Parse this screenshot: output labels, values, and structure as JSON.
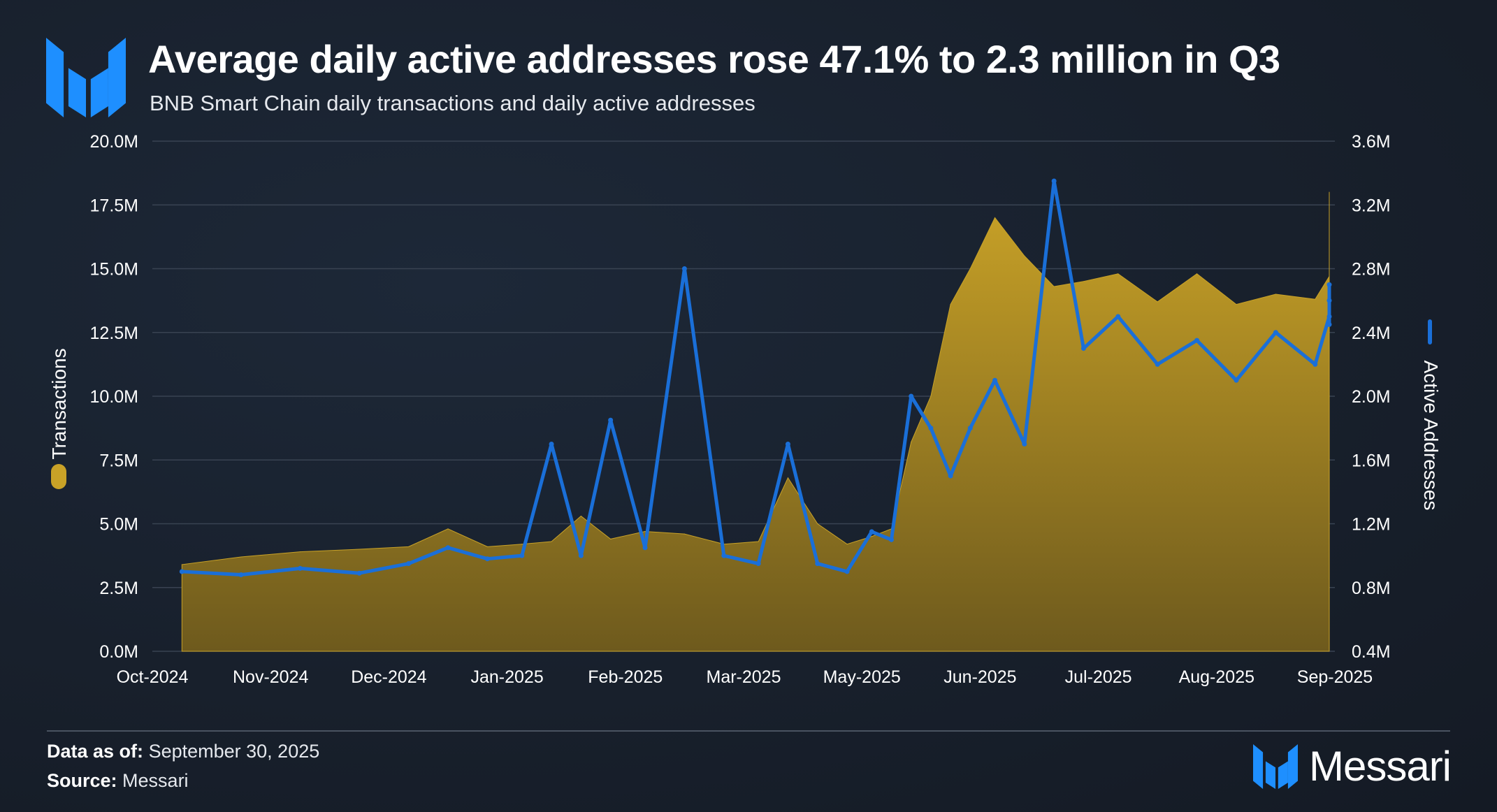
{
  "title": "Average daily active addresses rose 47.1% to 2.3 million in Q3",
  "subtitle": "BNB Smart Chain daily transactions and daily active addresses",
  "footer": {
    "data_as_of_label": "Data as of:",
    "data_as_of_value": "September 30, 2025",
    "source_label": "Source:",
    "source_value": "Messari"
  },
  "brand": {
    "name": "Messari"
  },
  "colors": {
    "background": "#18202c",
    "transactions": "#c9a227",
    "active_addresses": "#1a6fd8",
    "brand_blue": "#1e8fff",
    "gridline": "#394352"
  },
  "icons": {
    "logo": "messari-logo-icon"
  },
  "chart_data": {
    "type": "area",
    "xlabel": "",
    "x_ticks": [
      "Oct-2024",
      "Nov-2024",
      "Dec-2024",
      "Jan-2025",
      "Feb-2025",
      "Mar-2025",
      "May-2025",
      "Jun-2025",
      "Jul-2025",
      "Aug-2025",
      "Sep-2025"
    ],
    "y_left": {
      "label": "Transactions",
      "ticks": [
        "0.0M",
        "2.5M",
        "5.0M",
        "7.5M",
        "10.0M",
        "12.5M",
        "15.0M",
        "17.5M",
        "20.0M"
      ],
      "range": [
        0,
        20000000
      ]
    },
    "y_right": {
      "label": "Active Addresses",
      "ticks": [
        "0.4M",
        "0.8M",
        "1.2M",
        "1.6M",
        "2.0M",
        "2.4M",
        "2.8M",
        "3.2M",
        "3.6M"
      ],
      "range": [
        400000,
        3600000
      ]
    },
    "grid": true,
    "series": [
      {
        "name": "Transactions",
        "type": "area",
        "axis": "left",
        "x": [
          "Oct-2024",
          "Oct-2024",
          "Nov-2024",
          "Nov-2024",
          "Dec-2024",
          "Dec-2024",
          "Dec-2024",
          "Jan-2025",
          "Jan-2025",
          "Jan-2025",
          "Jan-2025",
          "Feb-2025",
          "Feb-2025",
          "Feb-2025",
          "Mar-2025",
          "Mar-2025",
          "Mar-2025",
          "Mar-2025",
          "May-2025",
          "May-2025",
          "May-2025",
          "May-2025",
          "May-2025",
          "May-2025",
          "Jun-2025",
          "Jun-2025",
          "Jun-2025",
          "Jun-2025",
          "Jul-2025",
          "Jul-2025",
          "Jul-2025",
          "Aug-2025",
          "Aug-2025",
          "Aug-2025",
          "Sep-2025",
          "Sep-2025",
          "Sep-2025",
          "Sep-2025"
        ],
        "values": [
          3400000,
          3700000,
          3900000,
          4000000,
          4100000,
          4800000,
          4100000,
          4200000,
          4300000,
          5300000,
          4400000,
          4700000,
          4600000,
          4200000,
          4300000,
          6800000,
          5000000,
          4200000,
          4500000,
          4800000,
          8200000,
          10000000,
          13600000,
          15000000,
          17000000,
          15500000,
          14300000,
          14500000,
          14800000,
          13700000,
          14800000,
          13600000,
          14000000,
          13800000,
          14700000,
          16000000,
          18000000,
          16000000
        ]
      },
      {
        "name": "Active Addresses",
        "type": "line",
        "axis": "right",
        "x": [
          "Oct-2024",
          "Oct-2024",
          "Nov-2024",
          "Nov-2024",
          "Dec-2024",
          "Dec-2024",
          "Dec-2024",
          "Jan-2025",
          "Jan-2025",
          "Jan-2025",
          "Jan-2025",
          "Feb-2025",
          "Feb-2025",
          "Feb-2025",
          "Mar-2025",
          "Mar-2025",
          "Mar-2025",
          "Mar-2025",
          "May-2025",
          "May-2025",
          "May-2025",
          "May-2025",
          "May-2025",
          "May-2025",
          "Jun-2025",
          "Jun-2025",
          "Jun-2025",
          "Jun-2025",
          "Jul-2025",
          "Jul-2025",
          "Jul-2025",
          "Aug-2025",
          "Aug-2025",
          "Aug-2025",
          "Sep-2025",
          "Sep-2025",
          "Sep-2025",
          "Sep-2025"
        ],
        "values": [
          900000,
          880000,
          920000,
          890000,
          950000,
          1050000,
          980000,
          1000000,
          1700000,
          1000000,
          1850000,
          1050000,
          2800000,
          1000000,
          950000,
          1700000,
          950000,
          900000,
          1150000,
          1100000,
          2000000,
          1800000,
          1500000,
          1800000,
          2100000,
          1700000,
          3350000,
          2300000,
          2500000,
          2200000,
          2350000,
          2100000,
          2400000,
          2200000,
          2500000,
          2600000,
          2700000,
          2450000
        ]
      }
    ]
  }
}
